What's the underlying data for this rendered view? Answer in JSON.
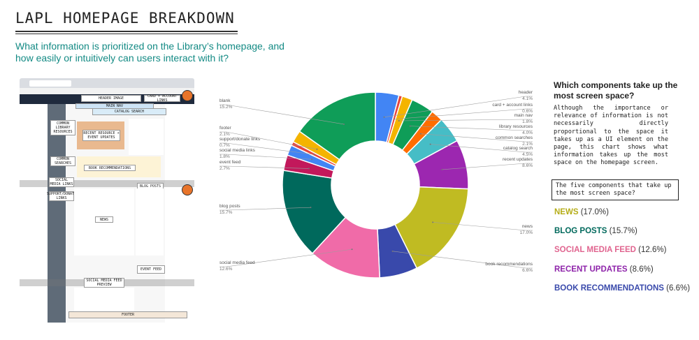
{
  "title": "LAPL HOMEPAGE BREAKDOWN",
  "subtitle": "What information is prioritized on the Library’s homepage, and how easily or intuitively can users interact with it?",
  "screenshot": {
    "labels": {
      "header_image": "HEADER IMAGE",
      "card_account": "CARD + ACCOUNT LINKS",
      "main_nav": "MAIN NAV",
      "catalog_search": "CATALOG SEARCH",
      "common_library_resources": "COMMON LIBRARY RESOURCES",
      "recent_resources": "RECENT RESOURCE + EVENT UPDATES",
      "common_searches": "COMMON SEARCHES",
      "book_recommendations": "BOOK RECOMMENDATIONS",
      "social_media_links": "SOCIAL MEDIA LINKS",
      "blog_posts": "BLOG POSTS",
      "support_donate": "SUPPORT/DONATE LINKS",
      "news": "NEWS",
      "event_feed": "EVENT FEED",
      "social_media_feed_preview": "SOCIAL MEDIA FEED PREVIEW",
      "footer": "FOOTER"
    }
  },
  "chart_data": {
    "type": "pie",
    "donut": true,
    "start": "top",
    "direction": "clockwise",
    "slices": [
      {
        "label": "header",
        "value": 4.1,
        "pct_text": "4.1%",
        "color": "#4285f4"
      },
      {
        "label": "card + account links",
        "value": 0.6,
        "pct_text": "0.6%",
        "color": "#e8453c"
      },
      {
        "label": "main nav",
        "value": 1.8,
        "pct_text": "1.8%",
        "color": "#f4b400"
      },
      {
        "label": "library resources",
        "value": 4.0,
        "pct_text": "4.0%",
        "color": "#0f9d58"
      },
      {
        "label": "common searches",
        "value": 2.1,
        "pct_text": "2.1%",
        "color": "#ff6d00"
      },
      {
        "label": "catalog search",
        "value": 4.5,
        "pct_text": "4.5%",
        "color": "#46bdc6"
      },
      {
        "label": "recent updates",
        "value": 8.6,
        "pct_text": "8.6%",
        "color": "#9c27b0"
      },
      {
        "label": "news",
        "value": 17.0,
        "pct_text": "17.0%",
        "color": "#c0bb22"
      },
      {
        "label": "book recommendations",
        "value": 6.6,
        "pct_text": "6.6%",
        "color": "#3949ab"
      },
      {
        "label": "social media feed",
        "value": 12.6,
        "pct_text": "12.6%",
        "color": "#f06ba8"
      },
      {
        "label": "blog posts",
        "value": 15.7,
        "pct_text": "15.7%",
        "color": "#00695c"
      },
      {
        "label": "event feed",
        "value": 2.7,
        "pct_text": "2.7%",
        "color": "#c2185b"
      },
      {
        "label": "social media links",
        "value": 1.8,
        "pct_text": "1.8%",
        "color": "#4285f4"
      },
      {
        "label": "support/donate links",
        "value": 0.7,
        "pct_text": "0.7%",
        "color": "#e8453c"
      },
      {
        "label": "footer",
        "value": 2.1,
        "pct_text": "2.1%",
        "color": "#f4b400"
      },
      {
        "label": "blank",
        "value": 15.2,
        "pct_text": "15.2%",
        "color": "#0f9d58"
      }
    ]
  },
  "right": {
    "question": "Which components take up the most screen space?",
    "description": "Although the importance or relevance of information is not necessarily directly proportional to the space it takes up as a UI element on the page, this chart shows what information takes up the most space on the homepage screen.",
    "top5_heading": "The five components that take up the most screen space?",
    "top5": [
      {
        "name": "NEWS",
        "pct": "(17.0%)",
        "color": "#b5ad18"
      },
      {
        "name": "BLOG POSTS",
        "pct": "(15.7%)",
        "color": "#00695c"
      },
      {
        "name": "SOCIAL MEDIA FEED",
        "pct": "(12.6%)",
        "color": "#e0648f"
      },
      {
        "name": "RECENT UPDATES",
        "pct": "(8.6%)",
        "color": "#8e24aa"
      },
      {
        "name": "BOOK RECOMMENDATIONS",
        "pct": "(6.6%)",
        "color": "#3949ab"
      }
    ]
  }
}
